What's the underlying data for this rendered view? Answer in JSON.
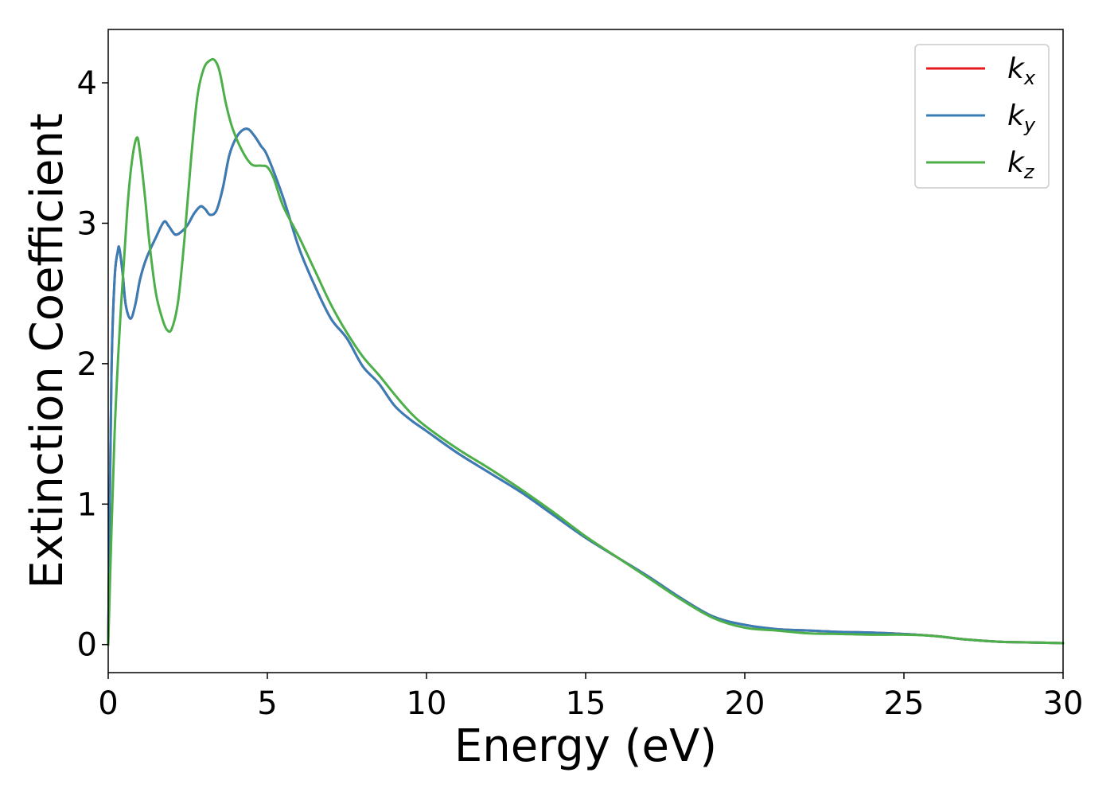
{
  "chart_data": {
    "type": "line",
    "xlabel": "Energy (eV)",
    "ylabel": "Extinction Coefficient",
    "xlim": [
      0,
      30
    ],
    "ylim": [
      -0.2,
      4.38
    ],
    "xticks": [
      "0",
      "5",
      "10",
      "15",
      "20",
      "25",
      "30"
    ],
    "yticks": [
      "0",
      "1",
      "2",
      "3",
      "4"
    ],
    "grid": false,
    "legend_position": "top-right",
    "series": [
      {
        "name": "k_x",
        "label_base": "k",
        "label_sub": "x",
        "color": "#e41a1c",
        "x": [
          0,
          0.1,
          0.2,
          0.3,
          0.35,
          0.45,
          0.55,
          0.7,
          0.85,
          1.0,
          1.2,
          1.5,
          1.75,
          1.9,
          2.1,
          2.3,
          2.5,
          2.7,
          2.9,
          3.05,
          3.2,
          3.4,
          3.6,
          3.8,
          4.0,
          4.2,
          4.4,
          4.6,
          4.8,
          5.0,
          5.5,
          6.0,
          6.5,
          7.0,
          7.5,
          8.0,
          8.5,
          9.0,
          9.5,
          10.0,
          11.0,
          12.0,
          13.0,
          14.0,
          15.0,
          16.0,
          17.0,
          18.0,
          19.0,
          20.0,
          21.0,
          22.0,
          23.0,
          24.0,
          25.0,
          26.0,
          27.0,
          28.0,
          29.0,
          30.0
        ],
        "y": [
          0.0,
          1.9,
          2.6,
          2.8,
          2.82,
          2.65,
          2.42,
          2.32,
          2.42,
          2.6,
          2.75,
          2.9,
          3.01,
          2.98,
          2.92,
          2.94,
          2.99,
          3.07,
          3.12,
          3.1,
          3.06,
          3.09,
          3.25,
          3.48,
          3.6,
          3.66,
          3.67,
          3.62,
          3.55,
          3.48,
          3.18,
          2.82,
          2.55,
          2.32,
          2.18,
          1.98,
          1.86,
          1.7,
          1.6,
          1.52,
          1.36,
          1.22,
          1.08,
          0.92,
          0.76,
          0.62,
          0.48,
          0.33,
          0.2,
          0.14,
          0.11,
          0.1,
          0.09,
          0.085,
          0.075,
          0.06,
          0.035,
          0.02,
          0.015,
          0.01
        ]
      },
      {
        "name": "k_y",
        "label_base": "k",
        "label_sub": "y",
        "color": "#377eb8",
        "x": [
          0,
          0.1,
          0.2,
          0.3,
          0.35,
          0.45,
          0.55,
          0.7,
          0.85,
          1.0,
          1.2,
          1.5,
          1.75,
          1.9,
          2.1,
          2.3,
          2.5,
          2.7,
          2.9,
          3.05,
          3.2,
          3.4,
          3.6,
          3.8,
          4.0,
          4.2,
          4.4,
          4.6,
          4.8,
          5.0,
          5.5,
          6.0,
          6.5,
          7.0,
          7.5,
          8.0,
          8.5,
          9.0,
          9.5,
          10.0,
          11.0,
          12.0,
          13.0,
          14.0,
          15.0,
          16.0,
          17.0,
          18.0,
          19.0,
          20.0,
          21.0,
          22.0,
          23.0,
          24.0,
          25.0,
          26.0,
          27.0,
          28.0,
          29.0,
          30.0
        ],
        "y": [
          0.0,
          1.9,
          2.6,
          2.8,
          2.82,
          2.65,
          2.42,
          2.32,
          2.42,
          2.6,
          2.75,
          2.9,
          3.01,
          2.98,
          2.92,
          2.94,
          2.99,
          3.07,
          3.12,
          3.1,
          3.06,
          3.09,
          3.25,
          3.48,
          3.6,
          3.66,
          3.67,
          3.62,
          3.55,
          3.48,
          3.18,
          2.82,
          2.55,
          2.32,
          2.18,
          1.98,
          1.86,
          1.7,
          1.6,
          1.52,
          1.36,
          1.22,
          1.08,
          0.92,
          0.76,
          0.62,
          0.48,
          0.33,
          0.2,
          0.14,
          0.11,
          0.1,
          0.09,
          0.085,
          0.075,
          0.06,
          0.035,
          0.02,
          0.015,
          0.01
        ]
      },
      {
        "name": "k_z",
        "label_base": "k",
        "label_sub": "z",
        "color": "#4daf4a",
        "x": [
          0,
          0.2,
          0.4,
          0.6,
          0.75,
          0.9,
          1.0,
          1.15,
          1.3,
          1.5,
          1.7,
          1.85,
          2.0,
          2.2,
          2.4,
          2.6,
          2.8,
          3.0,
          3.2,
          3.35,
          3.5,
          3.7,
          3.9,
          4.2,
          4.5,
          4.8,
          5.0,
          5.2,
          5.5,
          6.0,
          6.5,
          7.0,
          7.5,
          8.0,
          8.5,
          9.0,
          9.5,
          10.0,
          11.0,
          12.0,
          13.0,
          14.0,
          15.0,
          16.0,
          17.0,
          18.0,
          19.0,
          20.0,
          21.0,
          22.0,
          23.0,
          24.0,
          25.0,
          26.0,
          27.0,
          28.0,
          29.0,
          30.0
        ],
        "y": [
          0.0,
          1.5,
          2.4,
          3.1,
          3.45,
          3.61,
          3.5,
          3.2,
          2.85,
          2.5,
          2.32,
          2.24,
          2.25,
          2.45,
          2.9,
          3.45,
          3.9,
          4.1,
          4.16,
          4.16,
          4.08,
          3.85,
          3.68,
          3.52,
          3.42,
          3.41,
          3.4,
          3.32,
          3.12,
          2.9,
          2.66,
          2.42,
          2.22,
          2.05,
          1.92,
          1.78,
          1.65,
          1.55,
          1.39,
          1.25,
          1.1,
          0.94,
          0.77,
          0.62,
          0.47,
          0.32,
          0.19,
          0.12,
          0.1,
          0.08,
          0.075,
          0.07,
          0.07,
          0.06,
          0.035,
          0.02,
          0.015,
          0.01
        ]
      }
    ]
  }
}
